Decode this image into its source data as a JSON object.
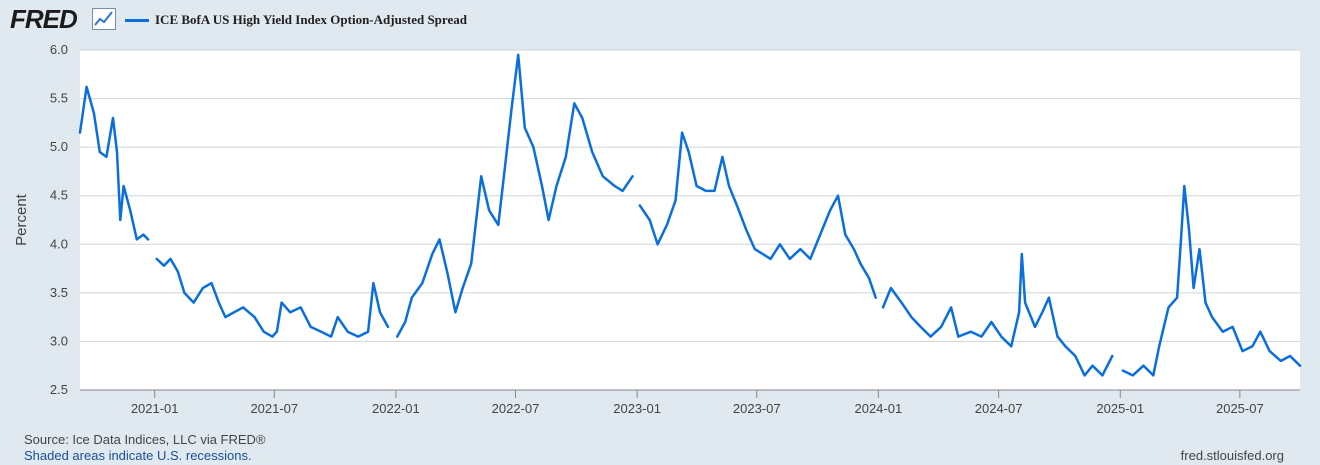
{
  "header": {
    "logo_text": "FRED",
    "logo_icon": "line-chart-icon"
  },
  "footer": {
    "source": "Source: Ice Data Indices, LLC via FRED®",
    "recessions": "Shaded areas indicate U.S. recessions.",
    "site": "fred.stlouisfed.org"
  },
  "colors": {
    "line": "#0a6fdc",
    "plot_bg": "#ffffff",
    "page_bg": "#e1e9f0",
    "grid": "#cfd3d8"
  },
  "chart_data": {
    "type": "line",
    "title": "",
    "xlabel": "",
    "ylabel": "Percent",
    "ylim": [
      2.5,
      6.0
    ],
    "xlim": [
      "2020-09-10",
      "2025-09-30"
    ],
    "yticks": [
      "2.5",
      "3.0",
      "3.5",
      "4.0",
      "4.5",
      "5.0",
      "5.5",
      "6.0"
    ],
    "xticks": [
      "2021-01",
      "2021-07",
      "2022-01",
      "2022-07",
      "2023-01",
      "2023-07",
      "2024-01",
      "2024-07",
      "2025-01",
      "2025-07"
    ],
    "grid": true,
    "legend_position": "top-left",
    "series": [
      {
        "name": "ICE BofA US High Yield Index Option-Adjusted Spread",
        "segments": [
          [
            [
              "2020-09-10",
              5.15
            ],
            [
              "2020-09-20",
              5.62
            ],
            [
              "2020-10-01",
              5.35
            ],
            [
              "2020-10-10",
              4.95
            ],
            [
              "2020-10-20",
              4.9
            ],
            [
              "2020-10-30",
              5.3
            ],
            [
              "2020-11-05",
              4.95
            ],
            [
              "2020-11-10",
              4.25
            ],
            [
              "2020-11-15",
              4.6
            ],
            [
              "2020-11-25",
              4.35
            ],
            [
              "2020-12-05",
              4.05
            ],
            [
              "2020-12-15",
              4.1
            ],
            [
              "2020-12-22",
              4.05
            ]
          ],
          [
            [
              "2021-01-04",
              3.85
            ],
            [
              "2021-01-15",
              3.78
            ],
            [
              "2021-01-25",
              3.85
            ],
            [
              "2021-02-05",
              3.72
            ],
            [
              "2021-02-15",
              3.5
            ],
            [
              "2021-03-01",
              3.4
            ],
            [
              "2021-03-15",
              3.55
            ],
            [
              "2021-03-28",
              3.6
            ],
            [
              "2021-04-08",
              3.4
            ],
            [
              "2021-04-18",
              3.25
            ],
            [
              "2021-05-01",
              3.3
            ],
            [
              "2021-05-15",
              3.35
            ],
            [
              "2021-06-01",
              3.25
            ],
            [
              "2021-06-15",
              3.1
            ],
            [
              "2021-06-28",
              3.05
            ],
            [
              "2021-07-05",
              3.1
            ],
            [
              "2021-07-12",
              3.4
            ],
            [
              "2021-07-25",
              3.3
            ],
            [
              "2021-08-10",
              3.35
            ],
            [
              "2021-08-25",
              3.15
            ],
            [
              "2021-09-10",
              3.1
            ],
            [
              "2021-09-25",
              3.05
            ],
            [
              "2021-10-05",
              3.25
            ],
            [
              "2021-10-20",
              3.1
            ],
            [
              "2021-11-05",
              3.05
            ],
            [
              "2021-11-20",
              3.1
            ],
            [
              "2021-11-28",
              3.6
            ],
            [
              "2021-12-08",
              3.3
            ],
            [
              "2021-12-20",
              3.15
            ]
          ],
          [
            [
              "2022-01-03",
              3.05
            ],
            [
              "2022-01-15",
              3.2
            ],
            [
              "2022-01-25",
              3.45
            ],
            [
              "2022-02-10",
              3.6
            ],
            [
              "2022-02-25",
              3.9
            ],
            [
              "2022-03-08",
              4.05
            ],
            [
              "2022-03-20",
              3.7
            ],
            [
              "2022-04-01",
              3.3
            ],
            [
              "2022-04-12",
              3.55
            ],
            [
              "2022-04-25",
              3.8
            ],
            [
              "2022-05-10",
              4.7
            ],
            [
              "2022-05-22",
              4.35
            ],
            [
              "2022-06-05",
              4.2
            ],
            [
              "2022-06-15",
              4.8
            ],
            [
              "2022-06-25",
              5.4
            ],
            [
              "2022-07-05",
              5.95
            ],
            [
              "2022-07-15",
              5.2
            ],
            [
              "2022-07-28",
              5.0
            ],
            [
              "2022-08-10",
              4.6
            ],
            [
              "2022-08-20",
              4.25
            ],
            [
              "2022-09-01",
              4.6
            ],
            [
              "2022-09-15",
              4.9
            ],
            [
              "2022-09-28",
              5.45
            ],
            [
              "2022-10-10",
              5.3
            ],
            [
              "2022-10-25",
              4.95
            ],
            [
              "2022-11-10",
              4.7
            ],
            [
              "2022-11-28",
              4.6
            ],
            [
              "2022-12-10",
              4.55
            ],
            [
              "2022-12-25",
              4.7
            ]
          ],
          [
            [
              "2023-01-05",
              4.4
            ],
            [
              "2023-01-20",
              4.25
            ],
            [
              "2023-02-01",
              4.0
            ],
            [
              "2023-02-15",
              4.2
            ],
            [
              "2023-02-28",
              4.45
            ],
            [
              "2023-03-10",
              5.15
            ],
            [
              "2023-03-20",
              4.95
            ],
            [
              "2023-04-01",
              4.6
            ],
            [
              "2023-04-15",
              4.55
            ],
            [
              "2023-04-28",
              4.55
            ],
            [
              "2023-05-10",
              4.9
            ],
            [
              "2023-05-20",
              4.6
            ],
            [
              "2023-06-01",
              4.4
            ],
            [
              "2023-06-15",
              4.15
            ],
            [
              "2023-06-28",
              3.95
            ],
            [
              "2023-07-10",
              3.9
            ],
            [
              "2023-07-22",
              3.85
            ],
            [
              "2023-08-05",
              4.0
            ],
            [
              "2023-08-20",
              3.85
            ],
            [
              "2023-09-05",
              3.95
            ],
            [
              "2023-09-20",
              3.85
            ],
            [
              "2023-10-05",
              4.1
            ],
            [
              "2023-10-20",
              4.35
            ],
            [
              "2023-11-01",
              4.5
            ],
            [
              "2023-11-12",
              4.1
            ],
            [
              "2023-11-25",
              3.95
            ],
            [
              "2023-12-05",
              3.8
            ],
            [
              "2023-12-18",
              3.65
            ],
            [
              "2023-12-28",
              3.45
            ]
          ],
          [
            [
              "2024-01-08",
              3.35
            ],
            [
              "2024-01-20",
              3.55
            ],
            [
              "2024-02-05",
              3.4
            ],
            [
              "2024-02-20",
              3.25
            ],
            [
              "2024-03-05",
              3.15
            ],
            [
              "2024-03-20",
              3.05
            ],
            [
              "2024-04-05",
              3.15
            ],
            [
              "2024-04-20",
              3.35
            ],
            [
              "2024-05-01",
              3.05
            ],
            [
              "2024-05-20",
              3.1
            ],
            [
              "2024-06-05",
              3.05
            ],
            [
              "2024-06-20",
              3.2
            ],
            [
              "2024-07-05",
              3.05
            ],
            [
              "2024-07-20",
              2.95
            ],
            [
              "2024-08-01",
              3.3
            ],
            [
              "2024-08-05",
              3.9
            ],
            [
              "2024-08-10",
              3.4
            ],
            [
              "2024-08-25",
              3.15
            ],
            [
              "2024-09-05",
              3.3
            ],
            [
              "2024-09-15",
              3.45
            ],
            [
              "2024-09-28",
              3.05
            ],
            [
              "2024-10-10",
              2.95
            ],
            [
              "2024-10-25",
              2.85
            ],
            [
              "2024-11-08",
              2.65
            ],
            [
              "2024-11-20",
              2.75
            ],
            [
              "2024-12-05",
              2.65
            ],
            [
              "2024-12-20",
              2.85
            ]
          ],
          [
            [
              "2025-01-05",
              2.7
            ],
            [
              "2025-01-20",
              2.65
            ],
            [
              "2025-02-05",
              2.75
            ],
            [
              "2025-02-20",
              2.65
            ],
            [
              "2025-03-01",
              2.95
            ],
            [
              "2025-03-15",
              3.35
            ],
            [
              "2025-03-28",
              3.45
            ],
            [
              "2025-04-03",
              4.05
            ],
            [
              "2025-04-08",
              4.6
            ],
            [
              "2025-04-15",
              4.15
            ],
            [
              "2025-04-22",
              3.55
            ],
            [
              "2025-05-01",
              3.95
            ],
            [
              "2025-05-10",
              3.4
            ],
            [
              "2025-05-20",
              3.25
            ],
            [
              "2025-06-05",
              3.1
            ],
            [
              "2025-06-20",
              3.15
            ],
            [
              "2025-07-05",
              2.9
            ],
            [
              "2025-07-20",
              2.95
            ],
            [
              "2025-08-01",
              3.1
            ],
            [
              "2025-08-15",
              2.9
            ],
            [
              "2025-09-01",
              2.8
            ],
            [
              "2025-09-15",
              2.85
            ],
            [
              "2025-09-30",
              2.75
            ]
          ]
        ]
      }
    ]
  }
}
